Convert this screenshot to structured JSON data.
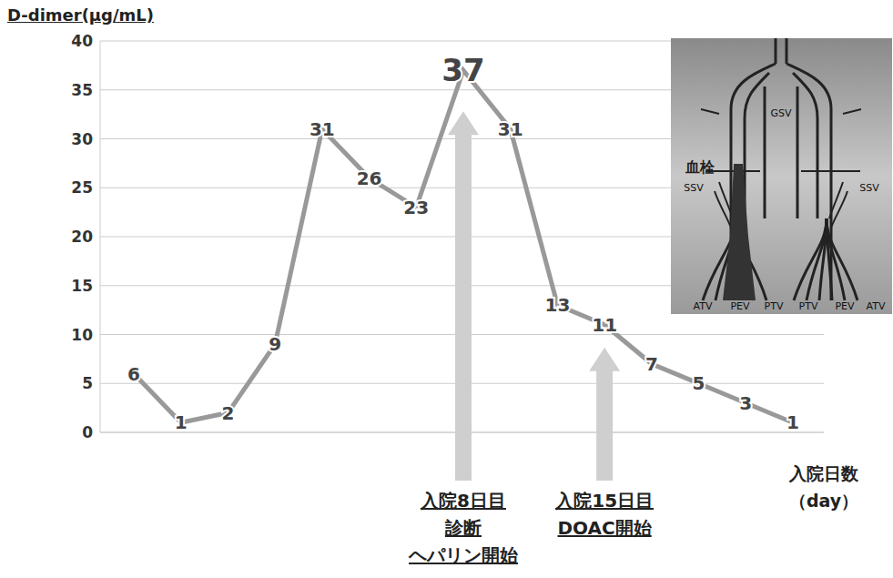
{
  "chart_data": {
    "type": "line",
    "y_label": "D-dimer(μg/mL)",
    "x_label": "入院日数\n（day）",
    "categories": [
      null,
      null,
      null,
      null,
      null,
      null,
      null,
      null,
      null,
      null,
      null,
      null,
      null,
      null,
      null
    ],
    "values": [
      6,
      1,
      2,
      9,
      31,
      26,
      23,
      37,
      31,
      13,
      11,
      7,
      5,
      3,
      1
    ],
    "color": "#999999",
    "ylim": [
      0,
      40
    ],
    "yticks": [
      0,
      5,
      10,
      15,
      20,
      25,
      30,
      35,
      40
    ],
    "grid": true,
    "data_labels": true,
    "tick_labels": "y",
    "annotations": [
      {
        "x": 7,
        "text": "入院8日目\n診断\nヘパリン開始"
      },
      {
        "x": 10,
        "text": "入院15日目\nDOAC開始"
      }
    ],
    "inset": {
      "thrombus": "血栓",
      "gsv": "GSV",
      "ssv": [
        "SSV",
        "SSV"
      ],
      "bottom": [
        "ATV",
        "PEV",
        "PTV",
        "PTV",
        "PEV",
        "ATV"
      ]
    }
  }
}
